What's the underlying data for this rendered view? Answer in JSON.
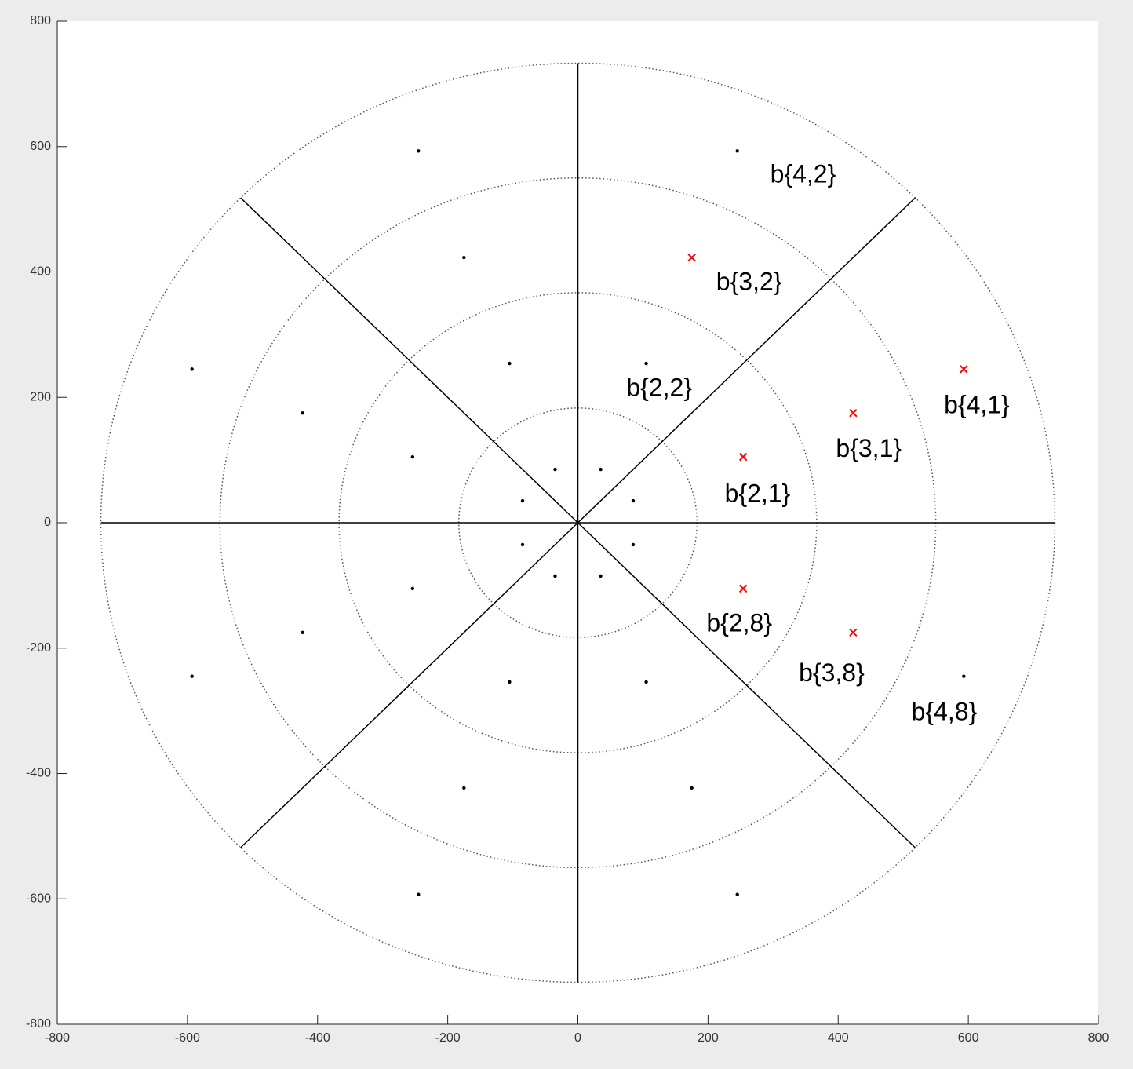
{
  "chart_data": {
    "type": "polar-grid",
    "xlim": [
      -800,
      800
    ],
    "ylim": [
      -800,
      800
    ],
    "xticks": [
      -800,
      -600,
      -400,
      -200,
      0,
      200,
      400,
      600,
      800
    ],
    "yticks": [
      -800,
      -600,
      -400,
      -200,
      0,
      200,
      400,
      600,
      800
    ],
    "ring_radii": [
      183,
      367,
      550,
      733
    ],
    "spoke_angles": [
      0,
      45,
      90,
      135,
      180,
      225,
      270,
      315
    ],
    "points": {
      "color": "#000000",
      "x": [
        35,
        85,
        85,
        35,
        -35,
        -85,
        -85,
        -35,
        105,
        -105,
        -254,
        -254,
        -105,
        105,
        -175,
        -423,
        -423,
        -175,
        175,
        245,
        -245,
        -593,
        -593,
        -245,
        245,
        593
      ],
      "y": [
        85,
        35,
        -35,
        -85,
        -85,
        -35,
        35,
        85,
        254,
        254,
        105,
        -105,
        -254,
        -254,
        423,
        175,
        -175,
        -423,
        -423,
        593,
        593,
        245,
        -245,
        -593,
        -593,
        -245
      ]
    },
    "crosses": {
      "color": "#ff0000",
      "x": [
        254,
        254,
        175,
        423,
        423,
        593
      ],
      "y": [
        105,
        -105,
        423,
        175,
        -175,
        245
      ]
    },
    "annotations": [
      {
        "text": "b{4,2}",
        "x": 346,
        "y": 553
      },
      {
        "text": "b{3,2}",
        "x": 263,
        "y": 382
      },
      {
        "text": "b{2,2}",
        "x": 125,
        "y": 213
      },
      {
        "text": "b{4,1}",
        "x": 613,
        "y": 185
      },
      {
        "text": "b{3,1}",
        "x": 447,
        "y": 116
      },
      {
        "text": "b{2,1}",
        "x": 276,
        "y": 44
      },
      {
        "text": "b{2,8}",
        "x": 248,
        "y": -163
      },
      {
        "text": "b{3,8}",
        "x": 390,
        "y": -242
      },
      {
        "text": "b{4,8}",
        "x": 563,
        "y": -304
      }
    ]
  }
}
